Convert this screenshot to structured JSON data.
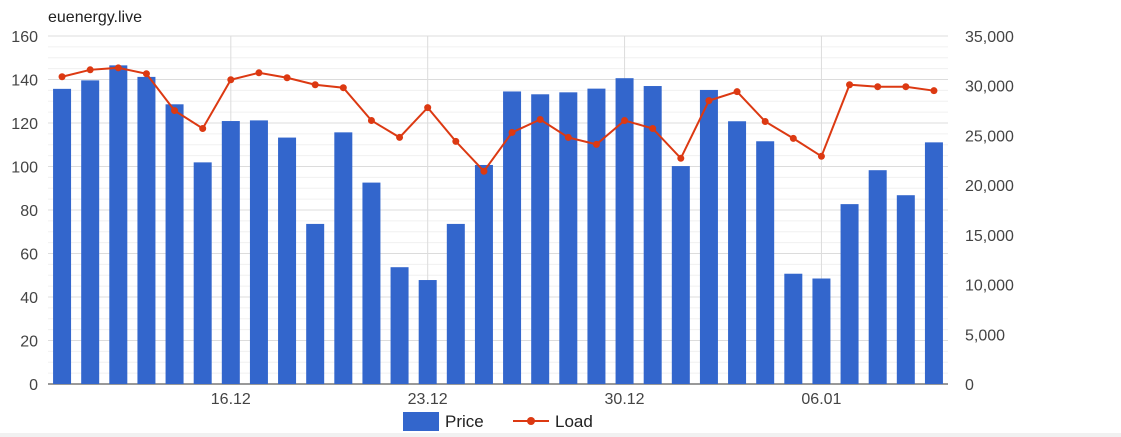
{
  "chart_data": {
    "type": "bar",
    "title": "euenergy.live",
    "x_tick_labels": [
      "16.12",
      "23.12",
      "30.12",
      "06.01"
    ],
    "x_tick_positions": [
      6,
      13,
      20,
      27
    ],
    "y_left": {
      "ticks": [
        "0",
        "20",
        "40",
        "60",
        "80",
        "100",
        "120",
        "140",
        "160"
      ],
      "ylim": [
        0,
        160
      ]
    },
    "y_right": {
      "ticks": [
        "0",
        "5,000",
        "10,000",
        "15,000",
        "20,000",
        "25,000",
        "30,000",
        "35,000"
      ],
      "ylim": [
        0,
        35000
      ]
    },
    "series": [
      {
        "name": "Price",
        "type": "bar",
        "axis": "left",
        "color": "#3366cc",
        "values": [
          135.7,
          139.6,
          146.5,
          141.2,
          128.6,
          101.9,
          120.9,
          121.2,
          113.3,
          73.6,
          115.7,
          92.6,
          53.7,
          47.8,
          73.6,
          100.7,
          134.5,
          133.2,
          134.1,
          135.8,
          140.6,
          137.0,
          100.2,
          135.2,
          120.8,
          111.6,
          50.7,
          48.5,
          82.7,
          98.3,
          86.8,
          111.1
        ]
      },
      {
        "name": "Load",
        "type": "line",
        "axis": "right",
        "color": "#dc3912",
        "values": [
          30900,
          31600,
          31800,
          31200,
          27500,
          25700,
          30600,
          31300,
          30800,
          30100,
          29800,
          26500,
          24800,
          27800,
          24400,
          21400,
          25300,
          26600,
          24800,
          24100,
          26500,
          25700,
          22700,
          28500,
          29400,
          26400,
          24700,
          22900,
          30100,
          29900,
          29900,
          29500
        ]
      }
    ],
    "legend": "bottom"
  }
}
